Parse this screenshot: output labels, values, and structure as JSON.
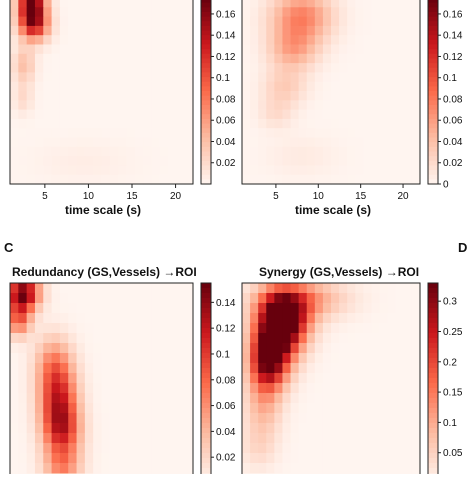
{
  "figure": {
    "panel_labels": {
      "c": "C",
      "d": "D"
    }
  },
  "chart_data": [
    {
      "id": "A",
      "type": "heatmap",
      "title": "",
      "xlabel": "time scale (s)",
      "ylabel": "",
      "x_ticks": [
        "5",
        "10",
        "15",
        "20"
      ],
      "colorbar_ticks": [
        "0.16",
        "0.14",
        "0.12",
        "0.1",
        "0.08",
        "0.06",
        "0.04",
        "0.02"
      ],
      "colorbar_range": [
        0.0,
        0.175
      ],
      "hot_spots": [
        {
          "x": 3.5,
          "y": 0.97,
          "sx": 1.1,
          "sy": 0.08,
          "v": 0.175
        },
        {
          "x": 3.8,
          "y": 0.85,
          "sx": 1.2,
          "sy": 0.06,
          "v": 0.1
        },
        {
          "x": 2.6,
          "y": 0.64,
          "sx": 0.9,
          "sy": 0.07,
          "v": 0.04
        },
        {
          "x": 2.5,
          "y": 0.46,
          "sx": 0.8,
          "sy": 0.06,
          "v": 0.02
        },
        {
          "x": 9.5,
          "y": 0.12,
          "sx": 4.0,
          "sy": 0.08,
          "v": 0.006
        }
      ]
    },
    {
      "id": "B",
      "type": "heatmap",
      "title": "",
      "xlabel": "time scale (s)",
      "ylabel": "",
      "x_ticks": [
        "5",
        "10",
        "15",
        "20"
      ],
      "colorbar_ticks": [
        "0.16",
        "0.14",
        "0.12",
        "0.1",
        "0.08",
        "0.06",
        "0.04",
        "0.02",
        "0"
      ],
      "colorbar_range": [
        0.0,
        0.175
      ],
      "hot_spots": [
        {
          "x": 8.0,
          "y": 0.9,
          "sx": 2.5,
          "sy": 0.1,
          "v": 0.075
        },
        {
          "x": 7.0,
          "y": 0.72,
          "sx": 2.0,
          "sy": 0.08,
          "v": 0.05
        },
        {
          "x": 6.0,
          "y": 0.52,
          "sx": 1.8,
          "sy": 0.07,
          "v": 0.03
        },
        {
          "x": 5.0,
          "y": 0.38,
          "sx": 1.5,
          "sy": 0.06,
          "v": 0.018
        },
        {
          "x": 8.0,
          "y": 0.15,
          "sx": 3.0,
          "sy": 0.08,
          "v": 0.008
        }
      ]
    },
    {
      "id": "C",
      "type": "heatmap",
      "title": "Redundancy (GS,Vessels) →ROI",
      "xlabel": "",
      "ylabel": "",
      "x_ticks": [],
      "colorbar_ticks": [
        "0.14",
        "0.12",
        "0.1",
        "0.08",
        "0.06",
        "0.04",
        "0.02"
      ],
      "colorbar_range": [
        0.0,
        0.155
      ],
      "hot_spots": [
        {
          "x": 2.5,
          "y": 0.95,
          "sx": 1.3,
          "sy": 0.06,
          "v": 0.15
        },
        {
          "x": 2.0,
          "y": 0.82,
          "sx": 1.0,
          "sy": 0.06,
          "v": 0.08
        },
        {
          "x": 6.5,
          "y": 0.42,
          "sx": 1.5,
          "sy": 0.12,
          "v": 0.1
        },
        {
          "x": 7.0,
          "y": 0.25,
          "sx": 1.5,
          "sy": 0.1,
          "v": 0.09
        },
        {
          "x": 6.0,
          "y": 0.6,
          "sx": 1.5,
          "sy": 0.1,
          "v": 0.05
        },
        {
          "x": 7.0,
          "y": 0.08,
          "sx": 1.5,
          "sy": 0.06,
          "v": 0.05
        }
      ]
    },
    {
      "id": "D",
      "type": "heatmap",
      "title": "Synergy (GS,Vessels) →ROI",
      "xlabel": "",
      "ylabel": "",
      "x_ticks": [],
      "colorbar_ticks": [
        "0.3",
        "0.25",
        "0.2",
        "0.15",
        "0.1",
        "0.05"
      ],
      "colorbar_range": [
        0.0,
        0.33
      ],
      "hot_spots": [
        {
          "x": 6.0,
          "y": 0.82,
          "sx": 2.0,
          "sy": 0.1,
          "v": 0.32
        },
        {
          "x": 4.0,
          "y": 0.6,
          "sx": 1.5,
          "sy": 0.1,
          "v": 0.26
        },
        {
          "x": 8.0,
          "y": 0.92,
          "sx": 3.5,
          "sy": 0.07,
          "v": 0.12
        },
        {
          "x": 5.0,
          "y": 0.72,
          "sx": 1.8,
          "sy": 0.12,
          "v": 0.2
        },
        {
          "x": 3.5,
          "y": 0.38,
          "sx": 1.5,
          "sy": 0.1,
          "v": 0.08
        },
        {
          "x": 3.0,
          "y": 0.18,
          "sx": 1.5,
          "sy": 0.08,
          "v": 0.04
        }
      ]
    }
  ]
}
